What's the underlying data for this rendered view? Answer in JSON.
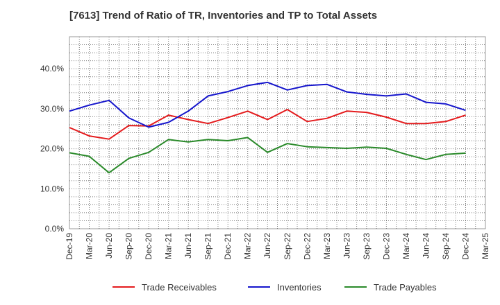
{
  "chart_data": {
    "type": "line",
    "title": "[7613]  Trend of Ratio of TR, Inventories and TP to Total Assets",
    "xlabel": "",
    "ylabel": "",
    "x": [
      "Dec-19",
      "Mar-20",
      "Jun-20",
      "Sep-20",
      "Dec-20",
      "Mar-21",
      "Jun-21",
      "Sep-21",
      "Dec-21",
      "Mar-22",
      "Jun-22",
      "Sep-22",
      "Dec-22",
      "Mar-23",
      "Jun-23",
      "Sep-23",
      "Dec-23",
      "Mar-24",
      "Jun-24",
      "Sep-24",
      "Dec-24",
      "Mar-25"
    ],
    "ylim": [
      0,
      48
    ],
    "yticks": [
      0,
      10,
      20,
      30,
      40
    ],
    "ytick_labels": [
      "0.0%",
      "10.0%",
      "20.0%",
      "30.0%",
      "40.0%"
    ],
    "grid": true,
    "legend_position": "bottom",
    "series": [
      {
        "name": "Trade Receivables",
        "color": "#e41a1c",
        "values": [
          25.3,
          23.2,
          22.4,
          25.8,
          25.7,
          28.4,
          27.3,
          26.3,
          27.8,
          29.4,
          27.3,
          29.8,
          26.8,
          27.6,
          29.4,
          29.1,
          27.9,
          26.3,
          26.3,
          26.8,
          28.4,
          null
        ]
      },
      {
        "name": "Inventories",
        "color": "#1515cc",
        "values": [
          29.4,
          30.9,
          32.1,
          27.7,
          25.4,
          26.6,
          29.4,
          33.2,
          34.3,
          35.8,
          36.6,
          34.7,
          35.8,
          36.1,
          34.2,
          33.6,
          33.2,
          33.7,
          31.6,
          31.2,
          29.6,
          null
        ]
      },
      {
        "name": "Trade Payables",
        "color": "#2a8a2a",
        "values": [
          19.0,
          18.1,
          14.0,
          17.6,
          19.1,
          22.3,
          21.7,
          22.3,
          22.0,
          22.8,
          19.1,
          21.3,
          20.5,
          20.3,
          20.1,
          20.4,
          20.1,
          18.6,
          17.3,
          18.6,
          18.9,
          null
        ]
      }
    ]
  }
}
